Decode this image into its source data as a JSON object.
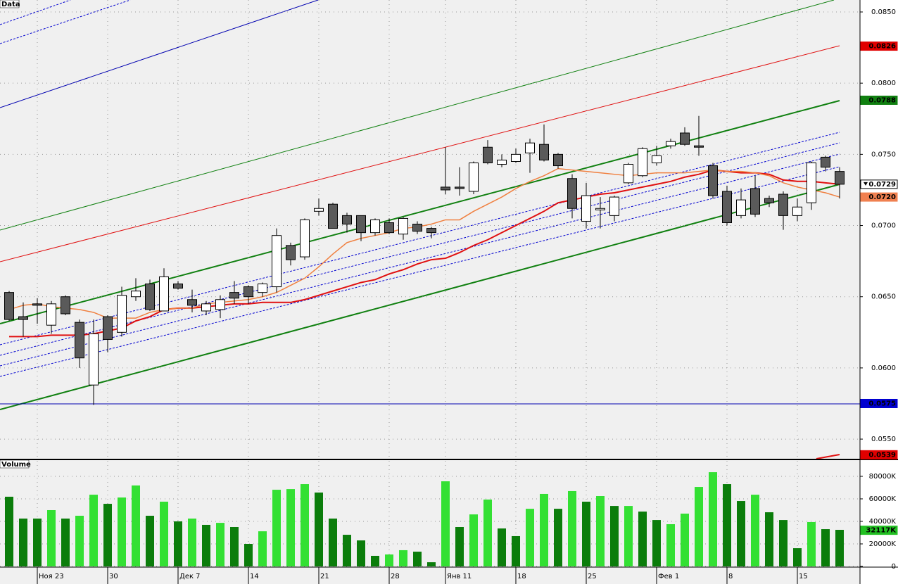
{
  "chart_data": [
    {
      "type": "candlestick",
      "title": "Data",
      "categories": [
        null,
        null,
        "Ноя 23",
        null,
        null,
        null,
        null,
        "30",
        null,
        null,
        null,
        null,
        "Дек 7",
        null,
        null,
        null,
        null,
        "14",
        null,
        null,
        null,
        null,
        "21",
        null,
        null,
        null,
        null,
        "28",
        null,
        null,
        null,
        "Янв 11",
        null,
        null,
        null,
        null,
        "18",
        null,
        null,
        null,
        null,
        "25",
        null,
        null,
        null,
        null,
        "Фев 1",
        null,
        null,
        null,
        null,
        "8",
        null,
        null,
        null,
        null,
        "15",
        null,
        null,
        null
      ],
      "open": [
        0.0653,
        0.0636,
        0.0645,
        0.063,
        0.065,
        0.0632,
        0.0588,
        0.0636,
        0.0625,
        0.065,
        0.0659,
        0.064,
        0.0659,
        0.0648,
        0.064,
        0.0641,
        0.0653,
        0.0657,
        0.0653,
        0.0657,
        0.0686,
        0.0678,
        0.071,
        0.0715,
        0.0707,
        0.0707,
        0.0695,
        0.0702,
        0.0694,
        0.0701,
        0.0698,
        0.0727,
        0.0727,
        0.0724,
        0.0755,
        0.0743,
        0.0745,
        0.0751,
        0.0757,
        0.075,
        0.0733,
        0.0703,
        0.0711,
        0.0707,
        0.073,
        0.0735,
        0.0744,
        0.0756,
        0.0765,
        0.0756,
        0.0742,
        0.0724,
        0.0707,
        0.0726,
        0.0719,
        0.0722,
        0.0707,
        0.0716,
        0.0748,
        0.0738
      ],
      "high": [
        0.0654,
        0.0646,
        0.0649,
        0.0647,
        0.0651,
        0.0634,
        0.0634,
        0.0637,
        0.0657,
        0.0663,
        0.0662,
        0.067,
        0.0661,
        0.0655,
        0.0647,
        0.0651,
        0.0661,
        0.0658,
        0.066,
        0.0698,
        0.0688,
        0.0705,
        0.0719,
        0.0716,
        0.0709,
        0.0707,
        0.0705,
        0.0705,
        0.0706,
        0.0703,
        0.0699,
        0.0755,
        0.0741,
        0.0745,
        0.076,
        0.075,
        0.0754,
        0.0761,
        0.0771,
        0.0751,
        0.0736,
        0.073,
        0.072,
        0.0721,
        0.0744,
        0.0755,
        0.0756,
        0.0761,
        0.0769,
        0.0777,
        0.0744,
        0.0728,
        0.0726,
        0.0735,
        0.0721,
        0.0724,
        0.0719,
        0.0745,
        0.0749,
        0.0741
      ],
      "low": [
        0.0633,
        0.0622,
        0.0631,
        0.0624,
        0.0637,
        0.06,
        0.0574,
        0.0611,
        0.0622,
        0.0647,
        0.064,
        0.064,
        0.0655,
        0.0639,
        0.0637,
        0.0635,
        0.0645,
        0.0645,
        0.065,
        0.0653,
        0.0672,
        0.0676,
        0.0707,
        0.0698,
        0.0695,
        0.0689,
        0.0693,
        0.0694,
        0.069,
        0.0694,
        0.0691,
        0.0722,
        0.0721,
        0.0722,
        0.0743,
        0.0741,
        0.0744,
        0.0737,
        0.0745,
        0.074,
        0.0705,
        0.0698,
        0.0698,
        0.0703,
        0.0729,
        0.0734,
        0.0742,
        0.0754,
        0.0756,
        0.0749,
        0.0719,
        0.07,
        0.0705,
        0.0706,
        0.0713,
        0.0697,
        0.0703,
        0.0711,
        0.0738,
        0.0719
      ],
      "close": [
        0.0634,
        0.0634,
        0.0644,
        0.0645,
        0.0638,
        0.0607,
        0.0624,
        0.062,
        0.0651,
        0.0654,
        0.0641,
        0.0664,
        0.0656,
        0.0644,
        0.0645,
        0.0648,
        0.0649,
        0.065,
        0.0659,
        0.0693,
        0.0676,
        0.0704,
        0.0712,
        0.0698,
        0.0701,
        0.0695,
        0.0704,
        0.0695,
        0.0705,
        0.0696,
        0.0695,
        0.0725,
        0.0726,
        0.0744,
        0.0744,
        0.0746,
        0.075,
        0.0758,
        0.0746,
        0.0742,
        0.0712,
        0.0721,
        0.0712,
        0.072,
        0.0743,
        0.0754,
        0.0749,
        0.0759,
        0.0757,
        0.0755,
        0.0721,
        0.0702,
        0.0718,
        0.0708,
        0.0716,
        0.0707,
        0.0713,
        0.0744,
        0.0741,
        0.0729
      ],
      "up_color": "#ffffff",
      "down_color": "#5a5a5a",
      "series": [
        {
          "color": "#e01010",
          "values": [
            0.0622,
            0.0622,
            0.0622,
            0.0623,
            0.0623,
            0.0623,
            0.0624,
            0.0626,
            0.0628,
            0.0633,
            0.0636,
            0.0641,
            0.0642,
            0.0642,
            0.0643,
            0.0644,
            0.0645,
            0.0645,
            0.0646,
            0.0646,
            0.0646,
            0.0648,
            0.0651,
            0.0654,
            0.0657,
            0.066,
            0.0662,
            0.0666,
            0.0669,
            0.0673,
            0.0676,
            0.0677,
            0.0681,
            0.0686,
            0.069,
            0.0695,
            0.07,
            0.0705,
            0.071,
            0.0716,
            0.0718,
            0.072,
            0.0722,
            0.0723,
            0.0725,
            0.0727,
            0.0729,
            0.0731,
            0.0734,
            0.0736,
            0.0739,
            0.0738,
            0.0737,
            0.0737,
            0.0736,
            0.0732,
            0.0731,
            0.0731,
            0.073,
            0.0729
          ]
        },
        {
          "color": "#f08040",
          "values": [
            0.0641,
            0.0644,
            0.0645,
            0.0643,
            0.0642,
            0.0641,
            0.0639,
            0.0635,
            0.0635,
            0.0635,
            0.0639,
            0.0641,
            0.0642,
            0.0642,
            0.0645,
            0.0646,
            0.0647,
            0.0648,
            0.065,
            0.0653,
            0.0658,
            0.0663,
            0.0671,
            0.068,
            0.0688,
            0.0691,
            0.0693,
            0.0695,
            0.0698,
            0.0699,
            0.0701,
            0.0704,
            0.0704,
            0.071,
            0.0715,
            0.072,
            0.0726,
            0.0731,
            0.0735,
            0.074,
            0.0739,
            0.0738,
            0.0737,
            0.0736,
            0.0735,
            0.0736,
            0.0737,
            0.0737,
            0.0737,
            0.0738,
            0.0739,
            0.0738,
            0.0738,
            0.0737,
            0.0735,
            0.073,
            0.0727,
            0.0725,
            0.0723,
            0.072
          ]
        }
      ],
      "ylim": [
        0.05362,
        0.08584
      ],
      "yticks": [
        {
          "value": 0.055,
          "label": "0.0550"
        },
        {
          "value": 0.06,
          "label": "0.0600"
        },
        {
          "value": 0.065,
          "label": "0.0650"
        },
        {
          "value": 0.07,
          "label": "0.0700"
        },
        {
          "value": 0.075,
          "label": "0.0750"
        },
        {
          "value": 0.08,
          "label": "0.0800"
        },
        {
          "value": 0.085,
          "label": "0.0850"
        }
      ],
      "price_markers": [
        {
          "value": 0.0826,
          "label": "0.0826",
          "color": "#e00000"
        },
        {
          "value": 0.0788,
          "label": "0.0788",
          "color": "#108010"
        },
        {
          "value": 0.0729,
          "label": "0.0729",
          "color": "#ffffff"
        },
        {
          "value": 0.072,
          "label": "0.0720",
          "color": "#f08050"
        },
        {
          "value": 0.0575,
          "label": "0.0575",
          "color": "#0000d0"
        },
        {
          "value": 0.0539,
          "label": "0.0539",
          "color": "#e00000"
        }
      ],
      "grid": true
    },
    {
      "type": "bar",
      "title": "Volume",
      "values": [
        61900,
        42500,
        42500,
        50000,
        42500,
        45000,
        63700,
        55600,
        61200,
        71900,
        45000,
        57500,
        40000,
        42500,
        36900,
        38700,
        35000,
        20000,
        31200,
        68100,
        68700,
        73100,
        65600,
        42500,
        28100,
        23100,
        9400,
        10600,
        14400,
        13100,
        3700,
        75600,
        35000,
        46200,
        59400,
        33700,
        26900,
        51200,
        64400,
        51200,
        66900,
        57500,
        62500,
        53700,
        53700,
        48700,
        41200,
        37500,
        46900,
        70600,
        83700,
        73100,
        58100,
        63700,
        48100,
        41200,
        16200,
        39400,
        33100,
        32500
      ],
      "colors": [
        "#0b7d0b",
        "#0b7d0b",
        "#0b7d0b",
        "#33e033",
        "#0b7d0b",
        "#33e033",
        "#33e033",
        "#0b7d0b",
        "#33e033",
        "#33e033",
        "#0b7d0b",
        "#33e033",
        "#0b7d0b",
        "#33e033",
        "#0b7d0b",
        "#33e033",
        "#0b7d0b",
        "#0b7d0b",
        "#33e033",
        "#33e033",
        "#33e033",
        "#33e033",
        "#0b7d0b",
        "#0b7d0b",
        "#0b7d0b",
        "#0b7d0b",
        "#0b7d0b",
        "#33e033",
        "#33e033",
        "#0b7d0b",
        "#0b7d0b",
        "#33e033",
        "#0b7d0b",
        "#33e033",
        "#33e033",
        "#0b7d0b",
        "#0b7d0b",
        "#33e033",
        "#33e033",
        "#0b7d0b",
        "#33e033",
        "#0b7d0b",
        "#33e033",
        "#0b7d0b",
        "#33e033",
        "#0b7d0b",
        "#0b7d0b",
        "#33e033",
        "#33e033",
        "#33e033",
        "#33e033",
        "#0b7d0b",
        "#0b7d0b",
        "#33e033",
        "#0b7d0b",
        "#0b7d0b",
        "#0b7d0b",
        "#33e033",
        "#0b7d0b",
        "#0b7d0b"
      ],
      "ylim": [
        0,
        93750
      ],
      "yticks": [
        0,
        {
          "value": 20000,
          "label": "20000K"
        },
        {
          "value": 40000,
          "label": "40000K"
        },
        {
          "value": 60000,
          "label": "60000K"
        },
        {
          "value": 80000,
          "label": "80000K"
        }
      ],
      "price_markers": [
        {
          "value": 32117,
          "label": "32117K",
          "color": "#22c022"
        }
      ],
      "grid": true
    }
  ]
}
